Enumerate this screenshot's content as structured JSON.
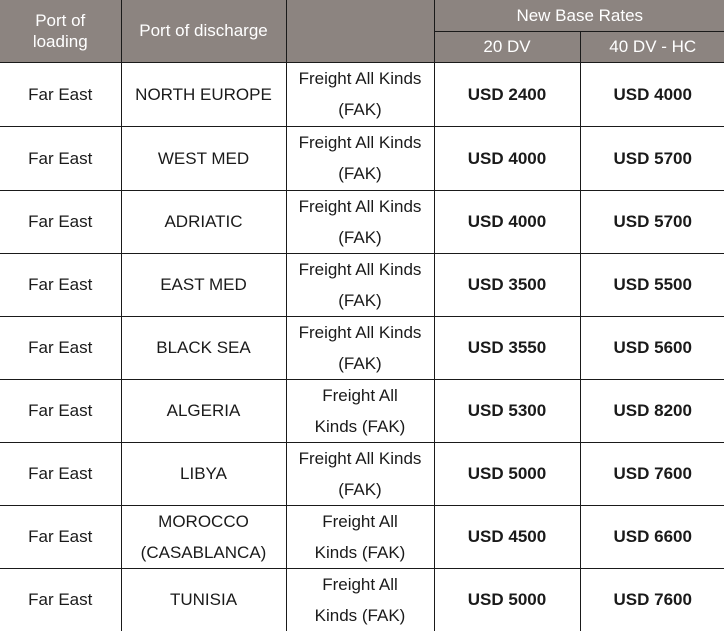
{
  "header": {
    "port_of_loading": "Port of\nloading",
    "port_of_discharge": "Port of discharge",
    "cargo": "",
    "new_base_rates": "New Base Rates",
    "col_20dv": "20 DV",
    "col_40dvhc": "40 DV - HC"
  },
  "colors": {
    "header_bg": "#8c8480",
    "header_text": "#ffffff"
  },
  "rows": [
    {
      "loading": "Far East",
      "discharge": "NORTH EUROPE",
      "cargo": "Freight All Kinds\n(FAK)",
      "rate_20": "USD 2400",
      "rate_40": "USD 4000"
    },
    {
      "loading": "Far East",
      "discharge": "WEST MED",
      "cargo": "Freight All Kinds\n(FAK)",
      "rate_20": "USD 4000",
      "rate_40": "USD 5700"
    },
    {
      "loading": "Far East",
      "discharge": "ADRIATIC",
      "cargo": "Freight All Kinds\n(FAK)",
      "rate_20": "USD 4000",
      "rate_40": "USD 5700"
    },
    {
      "loading": "Far East",
      "discharge": "EAST MED",
      "cargo": "Freight All Kinds\n(FAK)",
      "rate_20": "USD 3500",
      "rate_40": "USD 5500"
    },
    {
      "loading": "Far East",
      "discharge": "BLACK SEA",
      "cargo": "Freight All Kinds\n(FAK)",
      "rate_20": "USD 3550",
      "rate_40": "USD 5600"
    },
    {
      "loading": "Far East",
      "discharge": "ALGERIA",
      "cargo": "Freight All\nKinds (FAK)",
      "rate_20": "USD 5300",
      "rate_40": "USD 8200"
    },
    {
      "loading": "Far East",
      "discharge": "LIBYA",
      "cargo": "Freight All Kinds\n(FAK)",
      "rate_20": "USD 5000",
      "rate_40": "USD 7600"
    },
    {
      "loading": "Far East",
      "discharge": "MOROCCO\n(CASABLANCA)",
      "cargo": "Freight All\nKinds (FAK)",
      "rate_20": "USD 4500",
      "rate_40": "USD 6600"
    },
    {
      "loading": "Far East",
      "discharge": "TUNISIA",
      "cargo": "Freight All\nKinds (FAK)",
      "rate_20": "USD 5000",
      "rate_40": "USD 7600"
    }
  ]
}
